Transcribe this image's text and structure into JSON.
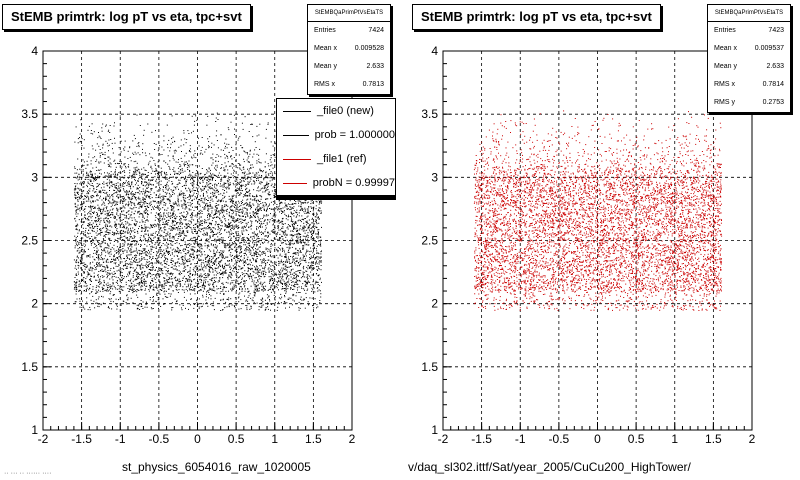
{
  "chart_data": [
    {
      "type": "scatter",
      "title": "StEMB primtrk: log pT vs eta, tpc+svt",
      "marker_color": "#000000",
      "xlim": [
        -2,
        2
      ],
      "ylim": [
        1,
        4
      ],
      "x_ticks": [
        "-2",
        "-1.5",
        "-1",
        "-0.5",
        "0",
        "0.5",
        "1",
        "1.5",
        "2"
      ],
      "y_ticks": [
        "1",
        "1.5",
        "2",
        "2.5",
        "3",
        "3.5",
        "4"
      ],
      "grid": true,
      "data_extent": {
        "x_range": [
          -1.6,
          1.6
        ],
        "y_range": [
          1.95,
          3.55
        ],
        "dense_y": [
          2.1,
          3.0
        ]
      },
      "stats": {
        "name": "StEMBQaPrimPtVsEtaTS",
        "entries_label": "Entries",
        "entries": "7424",
        "mean_x_label": "Mean x",
        "mean_x": "0.009528",
        "mean_y_label": "Mean y",
        "mean_y": "2.633",
        "rms_x_label": "RMS x",
        "rms_x": "0.7813"
      },
      "legend": {
        "entries": [
          {
            "label": "_file0 (new)",
            "color": "#000000"
          },
          {
            "label": "prob = 1.000000",
            "color": "#000000"
          },
          {
            "label": "_file1 (ref)",
            "color": "#cc0000"
          },
          {
            "label": "probN = 0.99997",
            "color": "#cc0000"
          }
        ]
      },
      "footer": "st_physics_6054016_raw_1020005"
    },
    {
      "type": "scatter",
      "title": "StEMB primtrk: log pT vs eta, tpc+svt",
      "marker_color": "#cc0000",
      "xlim": [
        -2,
        2
      ],
      "ylim": [
        1,
        4
      ],
      "x_ticks": [
        "-2",
        "-1.5",
        "-1",
        "-0.5",
        "0",
        "0.5",
        "1",
        "1.5",
        "2"
      ],
      "y_ticks": [
        "1",
        "1.5",
        "2",
        "2.5",
        "3",
        "3.5",
        "4"
      ],
      "grid": true,
      "data_extent": {
        "x_range": [
          -1.6,
          1.6
        ],
        "y_range": [
          1.95,
          3.55
        ],
        "dense_y": [
          2.1,
          3.0
        ]
      },
      "stats": {
        "name": "StEMBQaPrimPtVsEtaTS",
        "entries_label": "Entries",
        "entries": "7423",
        "mean_x_label": "Mean x",
        "mean_x": "0.009537",
        "mean_y_label": "Mean y",
        "mean_y": "2.633",
        "rms_x_label": "RMS x",
        "rms_x": "0.7814",
        "rms_y_label": "RMS y",
        "rms_y": "0.2753"
      },
      "footer": "v/daq_sl302.ittf/Sat/year_2005/CuCu200_HighTower/"
    }
  ]
}
